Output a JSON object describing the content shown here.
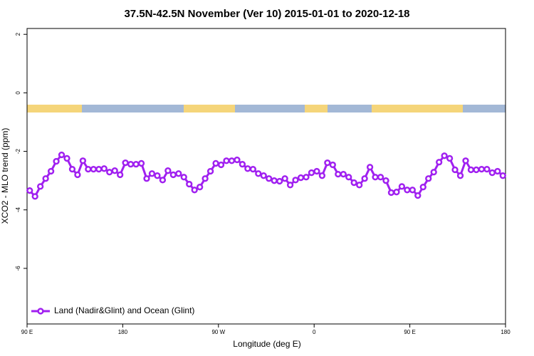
{
  "chart_data": {
    "type": "line",
    "title": "37.5N-42.5N November (Ver 10)   2015-01-01 to 2020-12-18",
    "x_label": "Longitude (deg E)",
    "y_label": "XCO2 - MLO trend (ppm)",
    "xlim": [
      90,
      540
    ],
    "xticks": [
      {
        "value": 90,
        "label": "90 E"
      },
      180,
      {
        "value": 270,
        "label": "90 W"
      },
      {
        "value": 360,
        "label": "0"
      },
      {
        "value": 450,
        "label": "90 E"
      },
      {
        "value": 540,
        "label": "180"
      }
    ],
    "ylim": [
      -7.9,
      2.2
    ],
    "yticks": [
      2,
      0,
      -2,
      -4,
      -6
    ],
    "legend": "bottom-left",
    "x": [
      92.5,
      97.5,
      102.5,
      107.5,
      112.5,
      117.5,
      122.5,
      127.5,
      132.5,
      137.5,
      142.5,
      147.5,
      152.5,
      157.5,
      162.5,
      167.5,
      172.5,
      177.5,
      182.5,
      187.5,
      192.5,
      197.5,
      202.5,
      207.5,
      212.5,
      217.5,
      222.5,
      227.5,
      232.5,
      237.5,
      242.5,
      247.5,
      252.5,
      257.5,
      262.5,
      267.5,
      272.5,
      277.5,
      282.5,
      287.5,
      292.5,
      297.5,
      302.5,
      307.5,
      312.5,
      317.5,
      322.5,
      327.5,
      332.5,
      337.5,
      342.5,
      347.5,
      352.5,
      357.5,
      362.5,
      367.5,
      372.5,
      377.5,
      382.5,
      387.5,
      392.5,
      397.5,
      402.5,
      407.5,
      412.5,
      417.5,
      422.5,
      427.5,
      432.5,
      437.5,
      442.5,
      447.5,
      452.5,
      457.5,
      462.5,
      467.5,
      472.5,
      477.5,
      482.5,
      487.5,
      492.5,
      497.5,
      502.5,
      507.5,
      512.5,
      517.5,
      522.5,
      527.5,
      532.5,
      537.5
    ],
    "series": [
      {
        "name": "Land (Nadir&Glint) and Ocean (Glint)",
        "color": "#a020f0",
        "values": [
          -3.34,
          -3.54,
          -3.2,
          -2.93,
          -2.68,
          -2.34,
          -2.12,
          -2.24,
          -2.61,
          -2.8,
          -2.32,
          -2.61,
          -2.61,
          -2.61,
          -2.59,
          -2.71,
          -2.66,
          -2.8,
          -2.39,
          -2.44,
          -2.44,
          -2.41,
          -2.93,
          -2.76,
          -2.83,
          -2.98,
          -2.66,
          -2.8,
          -2.76,
          -2.88,
          -3.12,
          -3.32,
          -3.22,
          -2.93,
          -2.68,
          -2.41,
          -2.46,
          -2.32,
          -2.32,
          -2.29,
          -2.44,
          -2.59,
          -2.61,
          -2.76,
          -2.83,
          -2.93,
          -3.0,
          -3.02,
          -2.93,
          -3.15,
          -2.98,
          -2.9,
          -2.88,
          -2.73,
          -2.68,
          -2.83,
          -2.39,
          -2.46,
          -2.78,
          -2.78,
          -2.88,
          -3.07,
          -3.15,
          -2.93,
          -2.54,
          -2.88,
          -2.88,
          -3.0,
          -3.41,
          -3.39,
          -3.2,
          -3.32,
          -3.32,
          -3.51,
          -3.22,
          -2.93,
          -2.71,
          -2.37,
          -2.15,
          -2.24,
          -2.63,
          -2.83,
          -2.32,
          -2.63,
          -2.63,
          -2.61,
          -2.61,
          -2.73,
          -2.68,
          -2.83
        ]
      }
    ]
  }
}
